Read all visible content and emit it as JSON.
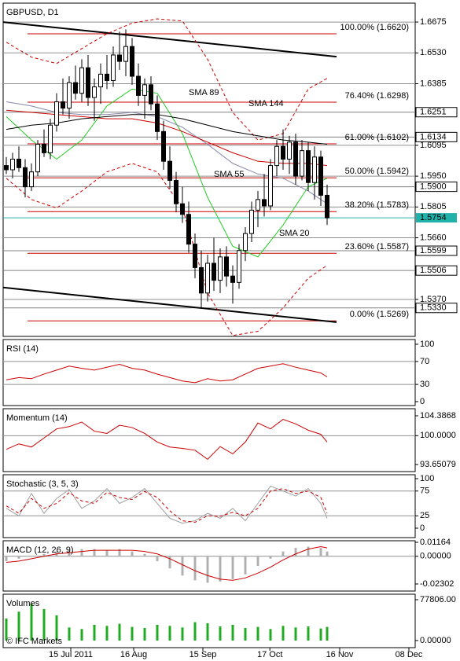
{
  "chart_data": [
    {
      "type": "candlestick",
      "title": "GBPUSD, D1",
      "xlim": [
        -0.5,
        65
      ],
      "xticks": [
        {
          "value": 10.25,
          "label": "15 Jul 2011"
        },
        {
          "value": 20.25,
          "label": "16 Aug"
        },
        {
          "value": 31.25,
          "label": "15 Sep"
        },
        {
          "value": 41.9,
          "label": "17 Oct"
        },
        {
          "value": 53,
          "label": "16 Nov"
        },
        {
          "value": 64,
          "label": "08 Dec"
        }
      ],
      "ylim": [
        1.5196,
        1.6764
      ],
      "yticks": [
        1.6675,
        {
          "value": 1.653,
          "label": "1.6530"
        },
        1.6385,
        1.6095,
        {
          "value": 1.595,
          "label": "1.5950"
        },
        1.5805,
        {
          "value": 1.566,
          "label": "1.5660"
        },
        {
          "value": 1.537,
          "label": "1.5370"
        }
      ],
      "up_color": "#ffffff",
      "down_color": "#000000",
      "open": [
        1.6,
        1.598,
        1.603,
        1.599,
        1.59,
        1.597,
        1.61,
        1.606,
        1.619,
        1.63,
        1.627,
        1.639,
        1.634,
        1.646,
        1.632,
        1.637,
        1.643,
        1.64,
        1.652,
        1.649,
        1.656,
        1.642,
        1.633,
        1.638,
        1.629,
        1.616,
        1.602,
        1.593,
        1.582,
        1.577,
        1.563,
        1.552,
        1.54,
        1.554,
        1.546,
        1.557,
        1.548,
        1.545,
        1.56,
        1.568,
        1.579,
        1.584,
        1.581,
        1.6,
        1.609,
        1.603,
        1.611,
        1.595,
        1.607,
        1.592,
        1.604,
        1.586
      ],
      "high": [
        1.604,
        1.606,
        1.609,
        1.603,
        1.601,
        1.612,
        1.617,
        1.622,
        1.634,
        1.641,
        1.642,
        1.647,
        1.65,
        1.652,
        1.641,
        1.648,
        1.652,
        1.656,
        1.663,
        1.664,
        1.66,
        1.648,
        1.641,
        1.642,
        1.633,
        1.621,
        1.609,
        1.597,
        1.59,
        1.583,
        1.568,
        1.56,
        1.558,
        1.566,
        1.561,
        1.562,
        1.553,
        1.563,
        1.571,
        1.583,
        1.588,
        1.596,
        1.603,
        1.612,
        1.617,
        1.614,
        1.615,
        1.612,
        1.611,
        1.609,
        1.607,
        1.591
      ],
      "low": [
        1.596,
        1.594,
        1.597,
        1.585,
        1.588,
        1.595,
        1.604,
        1.603,
        1.616,
        1.624,
        1.622,
        1.631,
        1.63,
        1.628,
        1.621,
        1.629,
        1.636,
        1.637,
        1.645,
        1.642,
        1.638,
        1.628,
        1.622,
        1.626,
        1.612,
        1.598,
        1.589,
        1.578,
        1.573,
        1.559,
        1.547,
        1.533,
        1.536,
        1.541,
        1.54,
        1.543,
        1.535,
        1.542,
        1.555,
        1.564,
        1.571,
        1.576,
        1.579,
        1.595,
        1.598,
        1.596,
        1.591,
        1.593,
        1.588,
        1.584,
        1.581,
        1.572
      ],
      "close": [
        1.598,
        1.603,
        1.599,
        1.59,
        1.597,
        1.61,
        1.606,
        1.619,
        1.63,
        1.627,
        1.639,
        1.634,
        1.646,
        1.632,
        1.637,
        1.643,
        1.64,
        1.652,
        1.649,
        1.656,
        1.642,
        1.633,
        1.638,
        1.629,
        1.616,
        1.602,
        1.593,
        1.582,
        1.577,
        1.563,
        1.552,
        1.54,
        1.554,
        1.546,
        1.557,
        1.548,
        1.545,
        1.56,
        1.568,
        1.579,
        1.584,
        1.581,
        1.6,
        1.609,
        1.603,
        1.611,
        1.595,
        1.607,
        1.592,
        1.604,
        1.586,
        1.5754
      ],
      "levels": {
        "color": "#808080",
        "values": [
          1.6251,
          1.6134,
          {
            "value": 1.59,
            "label": "1.5900"
          },
          1.5599,
          1.5506,
          {
            "value": 1.533,
            "label": "1.5330"
          }
        ]
      },
      "current_price": {
        "value": 1.5754,
        "color": "#20b2aa"
      },
      "fibonacci": {
        "color": "#cc0000",
        "levels": [
          {
            "value": 1.662,
            "label": "100.00% (1.6620)"
          },
          {
            "value": 1.6298,
            "label": "76.40% (1.6298)"
          },
          {
            "value": 1.6102,
            "label": "61.00% (1.6102)"
          },
          {
            "value": 1.5942,
            "label": "50.00% (1.5942)"
          },
          {
            "value": 1.5783,
            "label": "38.20% (1.5783)"
          },
          {
            "value": 1.5587,
            "label": "23.60% (1.5587)"
          },
          {
            "value": 1.5269,
            "label": "0.00% (1.5269)"
          }
        ]
      },
      "overlays": {
        "x": [
          0,
          4,
          8,
          12,
          16,
          20,
          24,
          28,
          32,
          36,
          40,
          44,
          48,
          51
        ],
        "series": [
          {
            "name": "SMA 20",
            "color": "#22cc22",
            "values": [
              1.623,
              1.612,
              1.603,
              1.612,
              1.628,
              1.636,
              1.634,
              1.615,
              1.585,
              1.562,
              1.557,
              1.572,
              1.59,
              1.594
            ]
          },
          {
            "name": "SMA 55",
            "color": "#8888aa",
            "values": [
              1.63,
              1.628,
              1.625,
              1.624,
              1.624,
              1.625,
              1.623,
              1.618,
              1.61,
              1.601,
              1.596,
              1.594,
              1.588,
              1.582
            ]
          },
          {
            "name": "SMA 89",
            "color": "#cc0000",
            "values": [
              1.626,
              1.625,
              1.624,
              1.623,
              1.622,
              1.622,
              1.62,
              1.616,
              1.611,
              1.606,
              1.602,
              1.601,
              1.601,
              1.6
            ]
          },
          {
            "name": "SMA 144",
            "color": "#000000",
            "values": [
              1.617,
              1.619,
              1.62,
              1.622,
              1.623,
              1.624,
              1.624,
              1.622,
              1.619,
              1.616,
              1.614,
              1.612,
              1.611,
              1.61
            ]
          }
        ],
        "bands": {
          "color": "#cc0000",
          "upper": [
            1.658,
            1.651,
            1.648,
            1.655,
            1.662,
            1.667,
            1.669,
            1.668,
            1.65,
            1.625,
            1.612,
            1.615,
            1.636,
            1.641
          ],
          "lower": [
            1.594,
            1.584,
            1.58,
            1.588,
            1.597,
            1.601,
            1.597,
            1.58,
            1.54,
            1.52,
            1.522,
            1.533,
            1.547,
            1.553
          ]
        }
      },
      "channel": {
        "color": "#000000",
        "x": [
          -0.5,
          52.5
        ],
        "upper": [
          1.6675,
          1.6512
        ],
        "lower": [
          1.5426,
          1.5263
        ]
      }
    },
    {
      "type": "line",
      "title": "RSI (14)",
      "ylim": [
        0,
        100
      ],
      "yticks": [
        100,
        70,
        30,
        0
      ],
      "x": [
        0,
        2,
        4,
        6,
        8,
        10,
        12,
        14,
        16,
        18,
        20,
        22,
        24,
        26,
        28,
        30,
        32,
        34,
        36,
        38,
        40,
        42,
        44,
        46,
        48,
        50,
        51
      ],
      "series": [
        {
          "color": "#cc0000",
          "values": [
            38,
            42,
            40,
            48,
            55,
            62,
            58,
            55,
            60,
            65,
            58,
            55,
            48,
            42,
            36,
            33,
            40,
            36,
            38,
            48,
            58,
            62,
            66,
            60,
            55,
            50,
            43
          ]
        }
      ]
    },
    {
      "type": "line",
      "title": "Momentum (14)",
      "ylim": [
        93.65079,
        104.3868
      ],
      "yticks": [
        104.3868,
        {
          "value": 100,
          "label": "100.0000"
        },
        93.65079
      ],
      "x": [
        0,
        2,
        4,
        6,
        8,
        10,
        12,
        14,
        16,
        18,
        20,
        22,
        24,
        26,
        28,
        30,
        32,
        34,
        36,
        38,
        40,
        42,
        44,
        46,
        48,
        50,
        51
      ],
      "series": [
        {
          "color": "#cc0000",
          "values": [
            97.0,
            98.2,
            97.5,
            99.5,
            101.5,
            102.0,
            103.0,
            101.0,
            100.5,
            102.3,
            101.8,
            100.5,
            98.6,
            97.5,
            97.2,
            96.8,
            94.8,
            97.6,
            96.0,
            98.6,
            102.8,
            101.5,
            103.6,
            102.6,
            101.2,
            100.3,
            98.6
          ]
        }
      ]
    },
    {
      "type": "line",
      "title": "Stochastic (3, 5, 3)",
      "ylim": [
        0,
        100
      ],
      "yticks": [
        100,
        75,
        25,
        0
      ],
      "x": [
        0,
        2,
        4,
        6,
        8,
        10,
        12,
        14,
        16,
        18,
        20,
        22,
        24,
        26,
        28,
        30,
        32,
        34,
        36,
        38,
        40,
        42,
        44,
        46,
        48,
        50,
        51
      ],
      "series": [
        {
          "color": "#a0a0a0",
          "values": [
            40,
            25,
            70,
            30,
            60,
            78,
            40,
            55,
            80,
            50,
            62,
            80,
            50,
            20,
            10,
            15,
            30,
            20,
            40,
            15,
            50,
            85,
            75,
            65,
            80,
            50,
            20
          ]
        },
        {
          "color": "#cc0000",
          "dash": true,
          "values": [
            45,
            30,
            60,
            40,
            50,
            72,
            55,
            50,
            72,
            62,
            58,
            74,
            62,
            35,
            15,
            12,
            25,
            24,
            32,
            25,
            40,
            75,
            80,
            70,
            75,
            62,
            30
          ]
        }
      ]
    },
    {
      "type": "line",
      "title": "MACD (12, 26, 9)",
      "ylim": [
        -0.02302,
        0.01164
      ],
      "yticks": [
        0.01164,
        {
          "value": 0,
          "label": "0.00000"
        },
        -0.02302
      ],
      "x": [
        0,
        2,
        4,
        6,
        8,
        10,
        12,
        14,
        16,
        18,
        20,
        22,
        24,
        26,
        28,
        30,
        32,
        34,
        36,
        38,
        40,
        42,
        44,
        46,
        48,
        50,
        51
      ],
      "series": [
        {
          "color": "#b0b0b0",
          "style": "bar",
          "values": [
            -0.004,
            -0.002,
            0,
            0.002,
            0.004,
            0.005,
            0.006,
            0.006,
            0.005,
            0.006,
            0.004,
            0.002,
            -0.004,
            -0.01,
            -0.016,
            -0.02,
            -0.022,
            -0.021,
            -0.019,
            -0.015,
            -0.008,
            -0.002,
            0.004,
            0.007,
            0.008,
            0.007,
            0.004
          ]
        },
        {
          "color": "#cc0000",
          "values": [
            -0.005,
            -0.004,
            -0.002,
            0,
            0.002,
            0.003,
            0.004,
            0.005,
            0.005,
            0.005,
            0.005,
            0.004,
            0.002,
            -0.002,
            -0.007,
            -0.012,
            -0.016,
            -0.019,
            -0.02,
            -0.018,
            -0.014,
            -0.009,
            -0.003,
            0.002,
            0.006,
            0.008,
            0.007
          ]
        }
      ]
    },
    {
      "type": "line",
      "title": "Volumes",
      "watermark": "© IFC Markets",
      "ylim": [
        0,
        77806
      ],
      "yticks": [
        {
          "value": 77806,
          "label": "77806.00"
        },
        {
          "value": 0,
          "label": "0.00000"
        }
      ],
      "x": [
        0,
        2,
        4,
        6,
        8,
        10,
        12,
        14,
        16,
        18,
        20,
        22,
        24,
        26,
        28,
        30,
        32,
        34,
        36,
        38,
        40,
        42,
        44,
        46,
        48,
        50,
        51
      ],
      "series": [
        {
          "color": "#22aa22",
          "style": "bar",
          "values": [
            42000,
            55000,
            70000,
            60000,
            48000,
            25000,
            22000,
            30000,
            28000,
            32000,
            26000,
            24000,
            30000,
            28000,
            25000,
            35000,
            33000,
            27000,
            30000,
            24000,
            26000,
            22000,
            28000,
            25000,
            27000,
            23000,
            26000
          ]
        }
      ]
    }
  ]
}
